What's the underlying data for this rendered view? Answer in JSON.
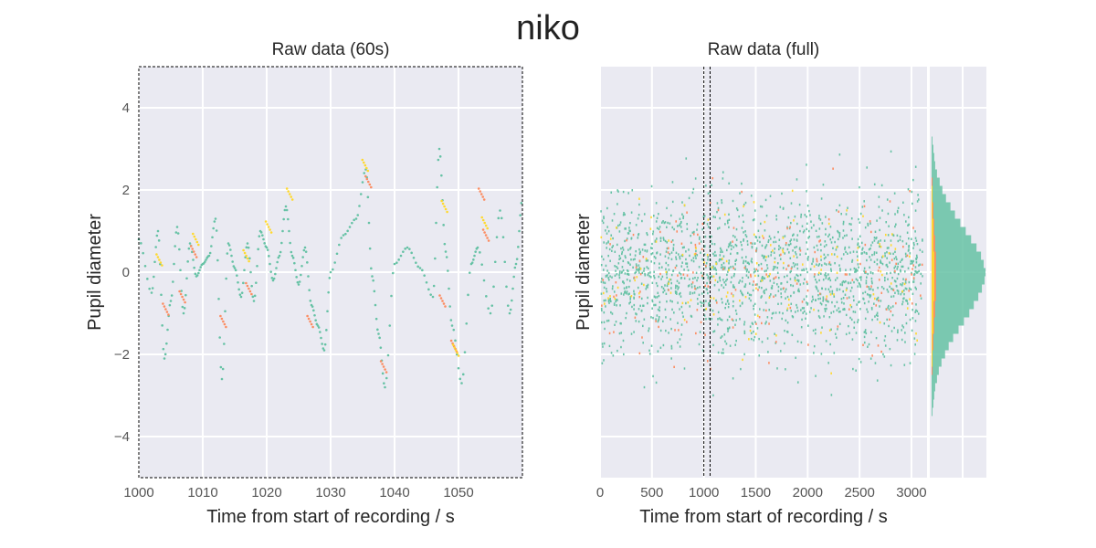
{
  "figure": {
    "title": "niko"
  },
  "colors": {
    "background": "#EAEAF2",
    "grid": "#FFFFFF",
    "primary": "#66C2A5",
    "secondary": "#FC8D62",
    "tertiary": "#FFD92F",
    "frame": "#000000"
  },
  "chart_data": [
    {
      "type": "scatter",
      "title": "Raw data (60s)",
      "xlabel": "Time from start of recording / s",
      "ylabel": "Pupil diameter",
      "xlim": [
        1000,
        1060
      ],
      "ylim": [
        -5,
        5
      ],
      "xticks": [
        1000,
        1010,
        1020,
        1030,
        1040,
        1050
      ],
      "xtick_labels": [
        "1000",
        "1010",
        "1020",
        "1030",
        "1040",
        "1050"
      ],
      "yticks": [
        4,
        2,
        0,
        -2,
        -4
      ],
      "ytick_labels": [
        "4",
        "2",
        "0",
        "−2",
        "−4"
      ],
      "grid": true,
      "frame": "dashed",
      "series": [
        {
          "color": "#66C2A5",
          "x": [
            1000,
            1002,
            1003,
            1004,
            1005,
            1006,
            1007,
            1008,
            1009,
            1010,
            1011,
            1012,
            1013,
            1014,
            1015,
            1016,
            1017,
            1018,
            1019,
            1020,
            1021,
            1022,
            1023,
            1024,
            1025,
            1026,
            1027,
            1028,
            1029,
            1030,
            1032,
            1034,
            1035.5,
            1036.5,
            1037.5,
            1038.5,
            1040,
            1042,
            1044,
            1046,
            1047,
            1048,
            1049,
            1050.5,
            1052,
            1053,
            1055,
            1056.5,
            1058,
            1059,
            1060
          ],
          "y": [
            0.8,
            -0.5,
            1.0,
            -2.1,
            -0.7,
            1.1,
            -1.0,
            0.7,
            -0.1,
            0.2,
            0.4,
            1.3,
            -2.6,
            0.7,
            0.1,
            -0.6,
            0.7,
            -0.7,
            1.0,
            0.6,
            -0.2,
            0.4,
            1.6,
            0.4,
            -0.3,
            0.6,
            -0.8,
            -1.3,
            -1.9,
            0.0,
            0.9,
            1.3,
            2.5,
            -0.1,
            -1.5,
            -2.8,
            0.2,
            0.6,
            0.1,
            -0.6,
            3.0,
            0.5,
            -1.3,
            -2.7,
            0.2,
            0.6,
            -1.0,
            1.5,
            -1.0,
            0.2,
            1.8
          ]
        },
        {
          "color": "#FC8D62",
          "x": [
            1004.2,
            1006.8,
            1008.6,
            1013.2,
            1017.2,
            1026.8,
            1035.9,
            1038.3,
            1047.5,
            1049.3,
            1053.6,
            1054.3
          ],
          "y": [
            -0.9,
            -0.6,
            0.5,
            -1.2,
            -0.4,
            -1.2,
            2.2,
            -2.3,
            -0.7,
            -1.8,
            1.9,
            0.9
          ]
        },
        {
          "color": "#FFD92F",
          "x": [
            1003.2,
            1008.9,
            1016.8,
            1020.3,
            1023.6,
            1035.4,
            1047.8,
            1049.6,
            1054.1
          ],
          "y": [
            0.3,
            0.8,
            0.4,
            1.1,
            1.9,
            2.6,
            1.6,
            -1.9,
            1.2
          ]
        }
      ]
    },
    {
      "type": "scatter",
      "title": "Raw data (full)",
      "xlabel": "Time from start of recording / s",
      "ylabel": "Pupil diameter",
      "xlim": [
        0,
        3150
      ],
      "ylim": [
        -5,
        5
      ],
      "xticks": [
        0,
        500,
        1000,
        1500,
        2000,
        2500,
        3000
      ],
      "xtick_labels": [
        "0",
        "500",
        "1000",
        "1500",
        "2000",
        "2500",
        "3000"
      ],
      "ytick_labels": [],
      "grid": true,
      "highlight_window": [
        1000,
        1060
      ],
      "description_points": "dense point cloud centered at 0 with spread of about 1.2",
      "series": [
        {
          "color": "#66C2A5",
          "y_center": 0,
          "y_spread": 1.2,
          "x_range": [
            0,
            3150
          ]
        },
        {
          "color": "#FC8D62",
          "y_center": 0,
          "y_spread": 1.2,
          "x_range": [
            0,
            3150
          ]
        },
        {
          "color": "#FFD92F",
          "y_center": 0,
          "y_spread": 1.2,
          "x_range": [
            0,
            3150
          ]
        }
      ]
    },
    {
      "type": "bar",
      "orientation": "horizontal",
      "bin_centers": [
        -3.4,
        -3.2,
        -3.0,
        -2.8,
        -2.6,
        -2.4,
        -2.2,
        -2.0,
        -1.8,
        -1.6,
        -1.4,
        -1.2,
        -1.0,
        -0.8,
        -0.6,
        -0.4,
        -0.2,
        0.0,
        0.2,
        0.4,
        0.6,
        0.8,
        1.0,
        1.2,
        1.4,
        1.6,
        1.8,
        2.0,
        2.2,
        2.4,
        2.6,
        2.8,
        3.0,
        3.2
      ],
      "series": [
        {
          "color": "#66C2A5",
          "values": [
            1,
            2,
            3,
            4,
            6,
            8,
            11,
            15,
            19,
            24,
            30,
            36,
            42,
            47,
            52,
            56,
            59,
            60,
            58,
            55,
            50,
            44,
            38,
            32,
            26,
            21,
            16,
            12,
            9,
            6,
            4,
            3,
            2,
            1
          ]
        },
        {
          "color": "#FC8D62",
          "values": [
            0,
            0,
            0,
            0,
            0,
            1,
            1,
            1,
            2,
            2,
            3,
            3,
            4,
            4,
            5,
            5,
            5,
            5,
            5,
            5,
            4,
            4,
            3,
            3,
            2,
            2,
            1,
            1,
            1,
            0,
            0,
            0,
            0,
            0
          ]
        },
        {
          "color": "#FFD92F",
          "values": [
            0,
            0,
            0,
            0,
            0,
            0,
            1,
            1,
            1,
            1,
            2,
            2,
            2,
            2,
            3,
            3,
            3,
            3,
            3,
            3,
            2,
            2,
            2,
            2,
            1,
            1,
            1,
            1,
            0,
            0,
            0,
            0,
            0,
            0
          ]
        }
      ]
    }
  ]
}
